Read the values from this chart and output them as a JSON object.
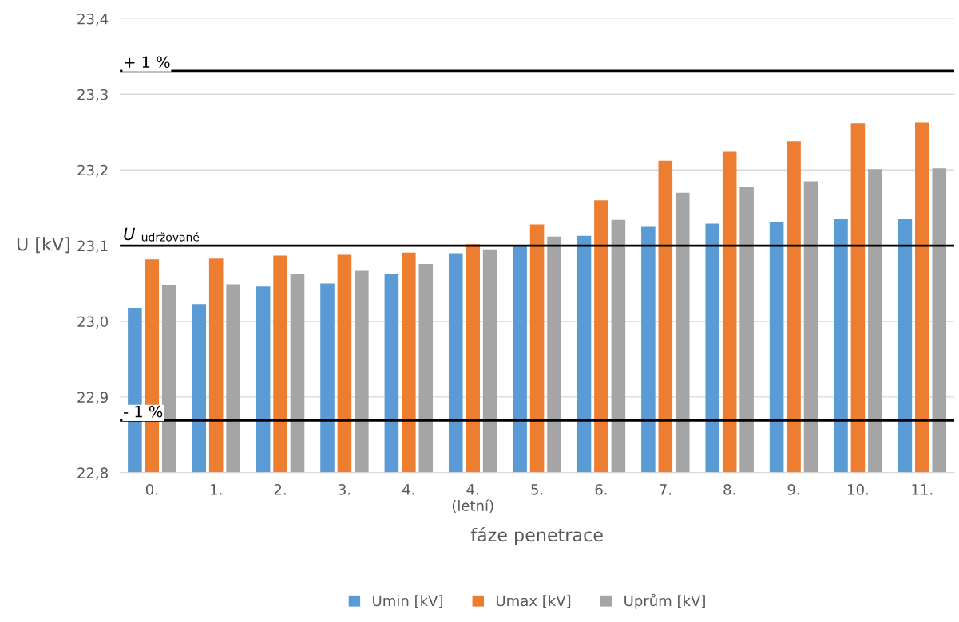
{
  "chart_data": {
    "type": "bar",
    "xlabel": "fáze penetrace",
    "ylabel": "U [kV]",
    "categories": [
      "0.",
      "1.",
      "2.",
      "3.",
      "4.",
      "4.\n(letní)",
      "5.",
      "6.",
      "7.",
      "8.",
      "9.",
      "10.",
      "11."
    ],
    "series": [
      {
        "name": "Umin [kV]",
        "color": "#5b9bd5",
        "values": [
          23.018,
          23.023,
          23.046,
          23.05,
          23.063,
          23.09,
          23.1,
          23.113,
          23.125,
          23.129,
          23.131,
          23.135,
          23.135
        ]
      },
      {
        "name": "Umax [kV]",
        "color": "#ed7d31",
        "values": [
          23.082,
          23.083,
          23.087,
          23.088,
          23.091,
          23.102,
          23.128,
          23.16,
          23.212,
          23.225,
          23.238,
          23.262,
          23.263
        ]
      },
      {
        "name": "Uprům [kV]",
        "color": "#a5a5a5",
        "values": [
          23.048,
          23.049,
          23.063,
          23.067,
          23.076,
          23.095,
          23.112,
          23.134,
          23.17,
          23.178,
          23.185,
          23.201,
          23.202
        ]
      }
    ],
    "ylim": [
      22.8,
      23.4
    ],
    "yticks": [
      {
        "value": 22.8,
        "label": "22,8"
      },
      {
        "value": 22.9,
        "label": "22,9"
      },
      {
        "value": 23.0,
        "label": "23,0"
      },
      {
        "value": 23.1,
        "label": "23,1"
      },
      {
        "value": 23.2,
        "label": "23,2"
      },
      {
        "value": 23.3,
        "label": "23,3"
      },
      {
        "value": 23.4,
        "label": "23,4"
      }
    ],
    "ref_lines": [
      {
        "axis": "y",
        "value": 23.331,
        "color": "#000000"
      },
      {
        "axis": "y",
        "value": 23.1,
        "label": "U$_{udržované}$",
        "color": "#000000"
      },
      {
        "axis": "y",
        "value": 22.869,
        "color": "#000000"
      }
    ],
    "annotations": [
      {
        "text": "+ 1 %",
        "y": 23.331
      },
      {
        "text": "- 1 %",
        "y": 22.869
      }
    ],
    "grid": "y",
    "legend": "bottom"
  }
}
